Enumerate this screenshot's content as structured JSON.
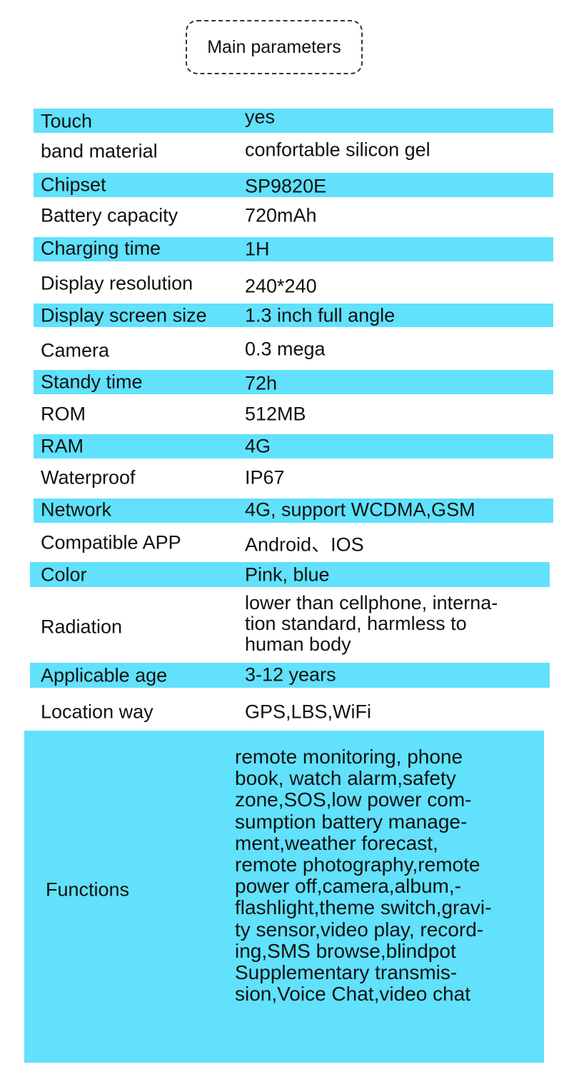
{
  "title": "Main parameters",
  "accent_color": "#61E1FB",
  "params": [
    {
      "label": "Touch",
      "value": "yes"
    },
    {
      "label": "band material",
      "value": "confortable silicon gel"
    },
    {
      "label": "Chipset",
      "value": "SP9820E"
    },
    {
      "label": "Battery capacity",
      "value": "720mAh"
    },
    {
      "label": "Charging time",
      "value": "1H"
    },
    {
      "label": "Display resolution",
      "value": "240*240"
    },
    {
      "label": "Display screen size",
      "value": "1.3 inch full angle"
    },
    {
      "label": "Camera",
      "value": "0.3 mega"
    },
    {
      "label": "Standy time",
      "value": "72h"
    },
    {
      "label": "ROM",
      "value": "512MB"
    },
    {
      "label": "RAM",
      "value": "4G"
    },
    {
      "label": "Waterproof",
      "value": "IP67"
    },
    {
      "label": "Network",
      "value": "4G, support WCDMA,GSM"
    },
    {
      "label": "Compatible APP",
      "value": "Android、IOS"
    },
    {
      "label": "Color",
      "value": "Pink, blue"
    },
    {
      "label": "Radiation",
      "value_lines": [
        "lower than cellphone, interna-",
        "tion standard, harmless to",
        "human body"
      ]
    },
    {
      "label": "Applicable age",
      "value": "3-12 years"
    },
    {
      "label": "Location way",
      "value": "GPS,LBS,WiFi"
    },
    {
      "label": "Functions",
      "value_lines": [
        "remote monitoring, phone",
        "book, watch alarm,safety",
        "zone,SOS,low power com-",
        "sumption battery manage-",
        "ment,weather forecast,",
        "remote photography,remote",
        "power off,camera,album,-",
        "flashlight,theme switch,gravi-",
        "ty sensor,video play, record-",
        "ing,SMS browse,blindpot",
        "Supplementary transmis-",
        "sion,Voice Chat,video chat"
      ]
    }
  ]
}
